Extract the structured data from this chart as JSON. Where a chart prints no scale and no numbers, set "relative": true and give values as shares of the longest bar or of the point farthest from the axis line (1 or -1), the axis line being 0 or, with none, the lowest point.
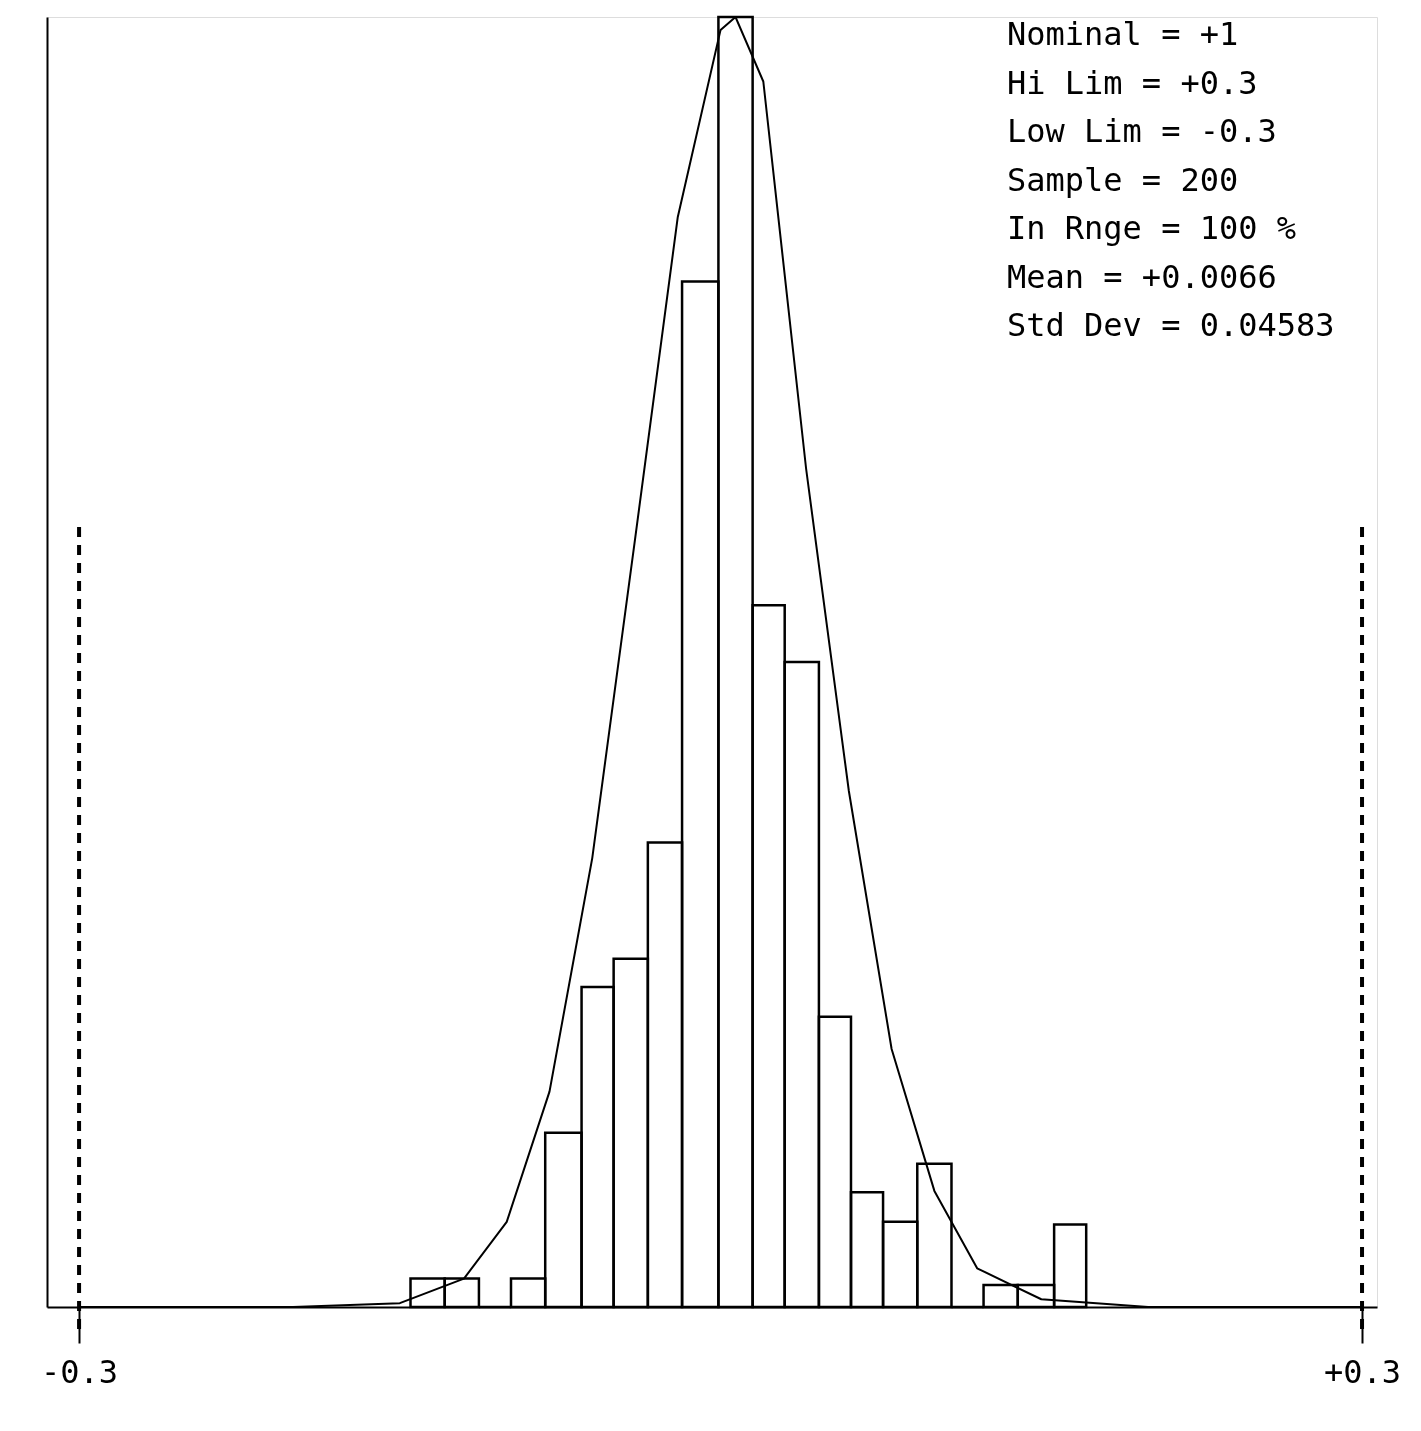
{
  "chart_data": {
    "type": "histogram",
    "relative": true,
    "bins": [
      -0.145,
      -0.129,
      -0.113,
      -0.098,
      -0.082,
      -0.065,
      -0.05,
      -0.034,
      -0.018,
      -0.001,
      0.015,
      0.03,
      0.046,
      0.061,
      0.076,
      0.092,
      0.108,
      0.123,
      0.139,
      0.156,
      0.171
    ],
    "values": [
      0.022,
      0.022,
      0,
      0.022,
      0.135,
      0.248,
      0.27,
      0.36,
      0.795,
      1,
      0.544,
      0.5,
      0.225,
      0.089,
      0.066,
      0.111,
      0,
      0.017,
      0.017,
      0.064
    ],
    "color": "#000000",
    "series": [
      {
        "type": "line",
        "color": "#000000",
        "x": [
          -0.3,
          -0.2,
          -0.15,
          -0.12,
          -0.1,
          -0.08,
          -0.06,
          -0.04,
          -0.02,
          0,
          0.007,
          0.02,
          0.04,
          0.06,
          0.08,
          0.1,
          0.12,
          0.15,
          0.2,
          0.3
        ],
        "values": [
          0,
          0,
          0.003,
          0.022,
          0.066,
          0.167,
          0.348,
          0.595,
          0.845,
          0.99,
          1,
          0.95,
          0.65,
          0.4,
          0.2,
          0.09,
          0.03,
          0.006,
          0,
          0
        ]
      }
    ],
    "xlim": [
      -0.315,
      0.307
    ],
    "xticks": [
      {
        "value": -0.3,
        "label": "-0.3"
      },
      {
        "value": 0.3,
        "label": "+0.3"
      }
    ],
    "tick_labels": "x",
    "grid": false,
    "ref_lines": [
      {
        "axis": "x",
        "value": -0.3,
        "label": null,
        "line_style": "dashed",
        "color": "#000000"
      },
      {
        "axis": "x",
        "value": 0.3,
        "label": null,
        "line_style": "dashed",
        "color": "#000000"
      }
    ],
    "annotations": [
      "Nominal = +1",
      "Hi Lim  = +0.3",
      "Low Lim = -0.3",
      "Sample  = 200",
      "In Rnge = 100 %",
      "Mean    = +0.0066",
      "Std Dev = 0.04583"
    ]
  }
}
